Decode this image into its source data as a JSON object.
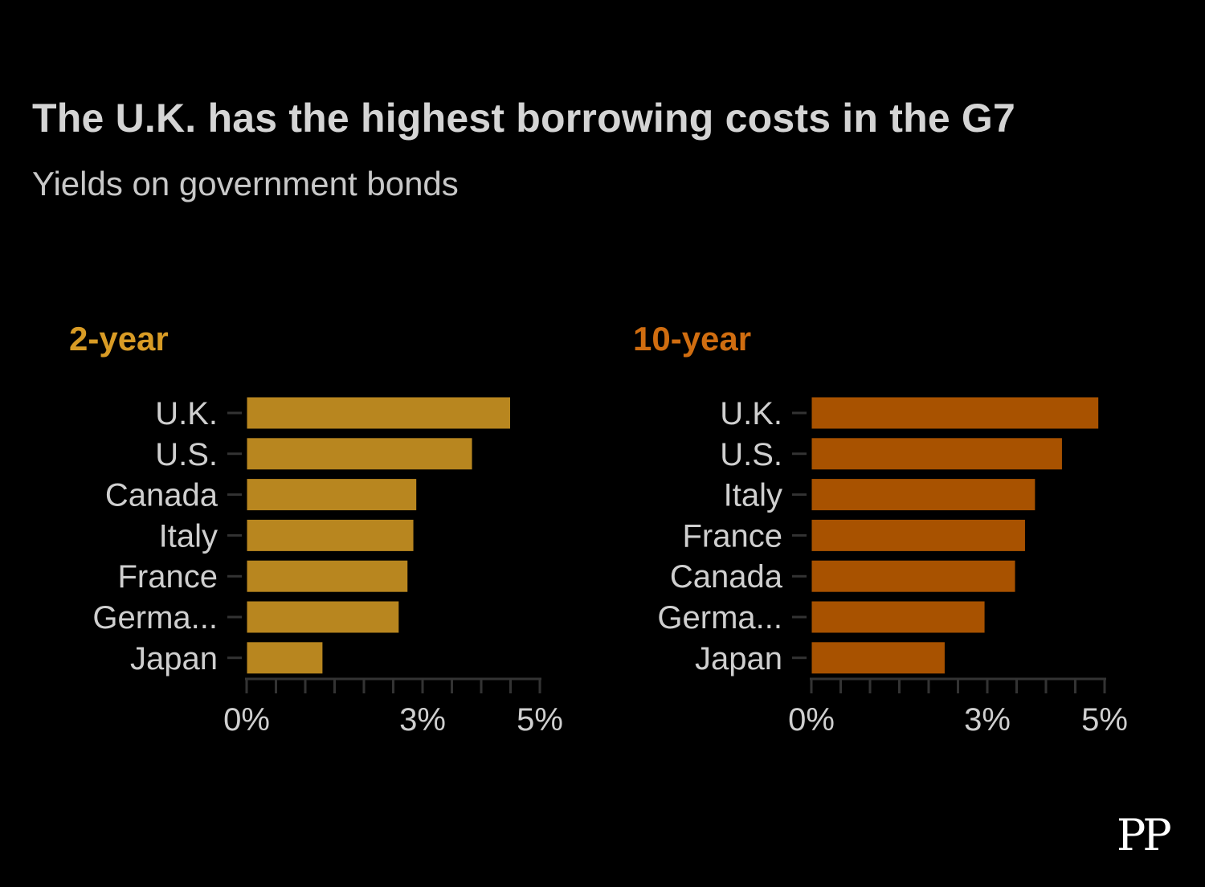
{
  "title": "The U.K. has the highest borrowing costs in the G7",
  "subtitle": "Yields on government bonds",
  "logo": "PP",
  "colors": {
    "two_year": "#b8861f",
    "ten_year": "#a85200",
    "title_two_year": "#d89b25",
    "title_ten_year": "#d06d10"
  },
  "chart_data": [
    {
      "type": "bar",
      "orientation": "horizontal",
      "title": "2-year",
      "categories": [
        "U.K.",
        "U.S.",
        "Canada",
        "Italy",
        "France",
        "Germa...",
        "Japan"
      ],
      "values": [
        4.5,
        3.85,
        2.9,
        2.85,
        2.75,
        2.6,
        1.3
      ],
      "xlim": [
        0,
        5
      ],
      "xticks": [
        "0%",
        "3%",
        "5%"
      ],
      "xtick_values": [
        0,
        3,
        5
      ],
      "minor_tick_step": 0.5
    },
    {
      "type": "bar",
      "orientation": "horizontal",
      "title": "10-year",
      "categories": [
        "U.K.",
        "U.S.",
        "Italy",
        "France",
        "Canada",
        "Germa...",
        "Japan"
      ],
      "values": [
        4.9,
        4.28,
        3.82,
        3.65,
        3.48,
        2.96,
        2.28
      ],
      "xlim": [
        0,
        5
      ],
      "xticks": [
        "0%",
        "3%",
        "5%"
      ],
      "xtick_values": [
        0,
        3,
        5
      ],
      "minor_tick_step": 0.5
    }
  ]
}
